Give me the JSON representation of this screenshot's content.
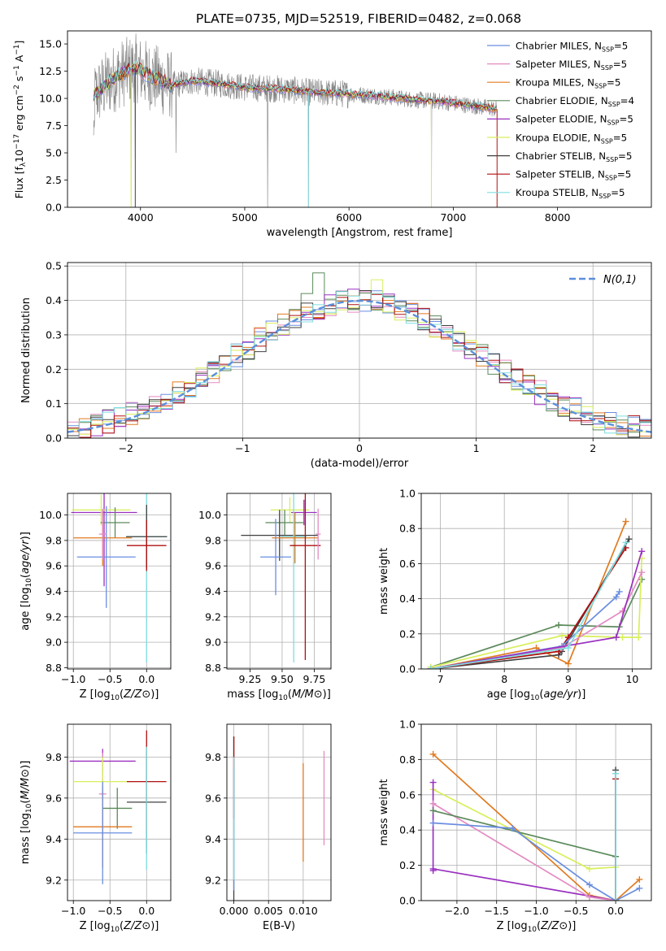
{
  "figure": {
    "title": "PLATE=0735, MJD=52519, FIBERID=0482, z=0.068"
  },
  "palette": {
    "Chabrier MILES": "#6a8ee0",
    "Salpeter MILES": "#e38bc3",
    "Kroupa MILES": "#e07a20",
    "Chabrier ELODIE": "#5b8a5b",
    "Salpeter ELODIE": "#9a30c0",
    "Kroupa ELODIE": "#d8ef5a",
    "Chabrier STELIB": "#404040",
    "Salpeter STELIB": "#b01010",
    "Kroupa STELIB": "#7fdde0",
    "data": "#808080"
  },
  "chart_data": [
    {
      "id": "spectrum",
      "type": "line",
      "xlabel": "wavelength [Angstrom, rest frame]",
      "ylabel": "Flux [f_λ 10^-17 erg cm^-2 s^-1 A^-1]",
      "xlim": [
        3300,
        8900
      ],
      "ylim": [
        0,
        16.2
      ],
      "xticks": [
        4000,
        5000,
        6000,
        7000,
        8000
      ],
      "yticks": [
        0.0,
        2.5,
        5.0,
        7.5,
        10.0,
        12.5,
        15.0
      ],
      "grid": false,
      "legend_position": "upper-right",
      "legend": [
        "Chabrier MILES, N_SSP=5",
        "Salpeter MILES, N_SSP=5",
        "Kroupa MILES, N_SSP=5",
        "Chabrier ELODIE, N_SSP=4",
        "Salpeter ELODIE, N_SSP=5",
        "Kroupa ELODIE, N_SSP=5",
        "Chabrier STELIB, N_SSP=5",
        "Salpeter STELIB, N_SSP=5",
        "Kroupa STELIB, N_SSP=5"
      ],
      "continuum": {
        "x": [
          3550,
          3700,
          3800,
          3950,
          4100,
          4300,
          4500,
          4800,
          5000,
          5300,
          5600,
          6000,
          6300,
          6600,
          6900,
          7200,
          7420
        ],
        "y": [
          10.2,
          11.5,
          12.2,
          12.8,
          12.0,
          11.2,
          11.6,
          11.3,
          11.0,
          10.9,
          10.6,
          10.4,
          10.2,
          9.9,
          9.7,
          9.3,
          9.0
        ]
      },
      "dips": [
        {
          "x": 3910,
          "y": 0.0
        },
        {
          "x": 3950,
          "y": 4.5
        },
        {
          "x": 4340,
          "y": 5.0
        },
        {
          "x": 5220,
          "y": 0.0
        },
        {
          "x": 5610,
          "y": 0.0
        },
        {
          "x": 6790,
          "y": 0.0
        }
      ]
    },
    {
      "id": "residuals",
      "type": "histogram",
      "xlabel": "(data-model)/error",
      "ylabel": "Normed distribution",
      "xlim": [
        -2.5,
        2.5
      ],
      "ylim": [
        0,
        0.51
      ],
      "xticks": [
        -2,
        -1,
        0,
        1,
        2
      ],
      "yticks": [
        0.0,
        0.1,
        0.2,
        0.3,
        0.4,
        0.5
      ],
      "grid": true,
      "legend_position": "upper-right",
      "legend": [
        "N(0,1)"
      ],
      "bin_width": 0.1,
      "peak_bins": [
        {
          "x": -0.35,
          "y": 0.48
        },
        {
          "x": 0.15,
          "y": 0.46
        },
        {
          "x": -0.45,
          "y": 0.42
        },
        {
          "x": 0.0,
          "y": 0.45
        }
      ]
    },
    {
      "id": "age-vs-Z",
      "type": "errorbar",
      "xlabel": "Z [log10(Z/Z⊙)]",
      "ylabel": "age [log10(age/yr)]",
      "xlim": [
        -1.08,
        0.33
      ],
      "ylim": [
        8.79,
        10.17
      ],
      "xticks": [
        -1.0,
        -0.5,
        0.0
      ],
      "yticks": [
        8.8,
        9.0,
        9.2,
        9.4,
        9.6,
        9.8,
        10.0
      ],
      "grid": true,
      "points": [
        {
          "s": "Salpeter ELODIE",
          "x": -0.58,
          "xerr": 0.45,
          "y": 10.02,
          "yerr": 0.58
        },
        {
          "s": "Kroupa ELODIE",
          "x": -0.62,
          "xerr": 0.4,
          "y": 10.04,
          "yerr": 0.12
        },
        {
          "s": "Chabrier ELODIE",
          "x": -0.43,
          "xerr": 0.2,
          "y": 9.94,
          "yerr": 0.12
        },
        {
          "s": "Kroupa MILES",
          "x": -0.6,
          "xerr": 0.4,
          "y": 9.82,
          "yerr": 0.22
        },
        {
          "s": "Chabrier MILES",
          "x": -0.55,
          "xerr": 0.4,
          "y": 9.67,
          "yerr": 0.4
        },
        {
          "s": "Kroupa STELIB",
          "x": 0.0,
          "xerr": 0.28,
          "y": 9.83,
          "yerr": 0.99
        },
        {
          "s": "Chabrier STELIB",
          "x": 0.0,
          "xerr": 0.28,
          "y": 9.83,
          "yerr": 0.25
        },
        {
          "s": "Salpeter STELIB",
          "x": 0.0,
          "xerr": 0.27,
          "y": 9.76,
          "yerr": 0.2
        },
        {
          "s": "Salpeter MILES",
          "x": -0.6,
          "xerr": 0.05,
          "y": 9.85,
          "yerr": 0.2
        }
      ]
    },
    {
      "id": "age-vs-mass",
      "type": "errorbar",
      "xlabel": "mass [log10(M/M⊙)]",
      "ylabel": "",
      "xlim": [
        9.07,
        9.88
      ],
      "ylim": [
        8.79,
        10.17
      ],
      "xticks": [
        9.25,
        9.5,
        9.75
      ],
      "yticks": [
        8.8,
        9.0,
        9.2,
        9.4,
        9.6,
        9.8,
        10.0
      ],
      "grid": true,
      "points": [
        {
          "s": "Kroupa ELODIE",
          "x": 9.56,
          "xerr": 0.15,
          "y": 10.04,
          "yerr": 0.1
        },
        {
          "s": "Salpeter ELODIE",
          "x": 9.67,
          "xerr": 0.1,
          "y": 10.02,
          "yerr": 0.1
        },
        {
          "s": "Chabrier ELODIE",
          "x": 9.52,
          "xerr": 0.15,
          "y": 9.94,
          "yerr": 0.1
        },
        {
          "s": "Chabrier STELIB",
          "x": 9.48,
          "xerr": 0.3,
          "y": 9.84,
          "yerr": 0.2
        },
        {
          "s": "Kroupa STELIB",
          "x": 9.59,
          "xerr": 0.1,
          "y": 9.83,
          "yerr": 0.99
        },
        {
          "s": "Kroupa MILES",
          "x": 9.6,
          "xerr": 0.18,
          "y": 9.82,
          "yerr": 0.2
        },
        {
          "s": "Salpeter STELIB",
          "x": 9.68,
          "xerr": 0.12,
          "y": 9.76,
          "yerr": 0.9
        },
        {
          "s": "Chabrier MILES",
          "x": 9.45,
          "xerr": 0.12,
          "y": 9.67,
          "yerr": 0.3
        },
        {
          "s": "Salpeter MILES",
          "x": 9.78,
          "xerr": 0.02,
          "y": 9.85,
          "yerr": 0.2
        }
      ]
    },
    {
      "id": "weight-vs-age",
      "type": "line",
      "xlabel": "age [log10(age/yr)]",
      "ylabel": "mass weight",
      "xlim": [
        6.7,
        10.3
      ],
      "ylim": [
        0,
        1.0
      ],
      "xticks": [
        7,
        8,
        9,
        10
      ],
      "yticks": [
        0.0,
        0.2,
        0.4,
        0.6,
        0.8,
        1.0
      ],
      "grid": true,
      "series": [
        {
          "s": "Chabrier ELODIE",
          "x": [
            6.85,
            8.85,
            9.8,
            10.15
          ],
          "y": [
            0.01,
            0.25,
            0.24,
            0.51
          ]
        },
        {
          "s": "Kroupa ELODIE",
          "x": [
            6.85,
            8.9,
            9.85,
            10.1,
            10.15
          ],
          "y": [
            0.01,
            0.19,
            0.18,
            0.18,
            0.63
          ]
        },
        {
          "s": "Kroupa MILES",
          "x": [
            6.85,
            8.5,
            9.0,
            9.9
          ],
          "y": [
            0.0,
            0.12,
            0.03,
            0.84
          ]
        },
        {
          "s": "Chabrier STELIB",
          "x": [
            6.85,
            8.85,
            8.9,
            9.95
          ],
          "y": [
            0.0,
            0.08,
            0.1,
            0.74
          ]
        },
        {
          "s": "Salpeter STELIB",
          "x": [
            6.85,
            8.85,
            9.0,
            9.9
          ],
          "y": [
            0.0,
            0.1,
            0.18,
            0.69
          ]
        },
        {
          "s": "Chabrier MILES",
          "x": [
            6.85,
            8.9,
            9.75,
            9.8
          ],
          "y": [
            0.0,
            0.13,
            0.41,
            0.44
          ]
        },
        {
          "s": "Salpeter MILES",
          "x": [
            6.85,
            8.9,
            9.85,
            10.15
          ],
          "y": [
            0.0,
            0.12,
            0.33,
            0.55
          ]
        },
        {
          "s": "Salpeter ELODIE",
          "x": [
            6.85,
            9.75,
            10.15
          ],
          "y": [
            0.0,
            0.18,
            0.67
          ]
        },
        {
          "s": "Kroupa STELIB",
          "x": [
            6.85,
            9.0,
            9.9
          ],
          "y": [
            0.0,
            0.12,
            0.72
          ]
        }
      ]
    },
    {
      "id": "mass-vs-Z",
      "type": "errorbar",
      "xlabel": "Z [log10(Z/Z⊙)]",
      "ylabel": "mass [log10(M/M⊙)]",
      "xlim": [
        -1.08,
        0.33
      ],
      "ylim": [
        9.1,
        9.96
      ],
      "xticks": [
        -1.0,
        -0.5,
        0.0
      ],
      "yticks": [
        9.2,
        9.4,
        9.6,
        9.8
      ],
      "grid": true,
      "points": [
        {
          "s": "Salpeter ELODIE",
          "x": -0.6,
          "xerr": 0.45,
          "y": 9.78,
          "yerr": 0.06
        },
        {
          "s": "Salpeter MILES",
          "x": -0.6,
          "xerr": 0.05,
          "y": 9.62,
          "yerr": 0.2
        },
        {
          "s": "Kroupa ELODIE",
          "x": -0.6,
          "xerr": 0.4,
          "y": 9.68,
          "yerr": 0.12
        },
        {
          "s": "Chabrier ELODIE",
          "x": -0.4,
          "xerr": 0.2,
          "y": 9.55,
          "yerr": 0.1
        },
        {
          "s": "Kroupa MILES",
          "x": -0.6,
          "xerr": 0.4,
          "y": 9.46,
          "yerr": 0.2
        },
        {
          "s": "Chabrier MILES",
          "x": -0.6,
          "xerr": 0.4,
          "y": 9.43,
          "yerr": 0.25
        },
        {
          "s": "Chabrier STELIB",
          "x": 0.0,
          "xerr": 0.27,
          "y": 9.58,
          "yerr": 0.25
        },
        {
          "s": "Salpeter STELIB",
          "x": 0.0,
          "xerr": 0.27,
          "y": 9.68,
          "yerr": 0.25
        },
        {
          "s": "Kroupa STELIB",
          "x": 0.0,
          "xerr": 0.0,
          "y": 9.55,
          "yerr": 0.3
        }
      ]
    },
    {
      "id": "mass-vs-EBV",
      "type": "errorbar",
      "xlabel": "E(B-V)",
      "ylabel": "",
      "xlim": [
        -0.001,
        0.014
      ],
      "ylim": [
        9.1,
        9.96
      ],
      "xticks": [
        0.0,
        0.005,
        0.01
      ],
      "yticks": [
        9.2,
        9.4,
        9.6,
        9.8
      ],
      "grid": true,
      "points": [
        {
          "s": "Chabrier STELIB",
          "x": 0.0,
          "xerr": 0.0,
          "y": 9.5,
          "yerr": 0.4
        },
        {
          "s": "Salpeter STELIB",
          "x": 0.0,
          "xerr": 0.0,
          "y": 9.7,
          "yerr": 0.2
        },
        {
          "s": "Chabrier MILES",
          "x": 0.0,
          "xerr": 0.0,
          "y": 9.45,
          "yerr": 0.3
        },
        {
          "s": "Kroupa STELIB",
          "x": 0.0,
          "xerr": 0.0,
          "y": 9.5,
          "yerr": 0.3
        },
        {
          "s": "Kroupa MILES",
          "x": 0.01,
          "xerr": 0.0,
          "y": 9.53,
          "yerr": 0.24
        },
        {
          "s": "Salpeter MILES",
          "x": 0.013,
          "xerr": 0.0,
          "y": 9.6,
          "yerr": 0.23
        }
      ]
    },
    {
      "id": "weight-vs-Z",
      "type": "line",
      "xlabel": "Z [log10(Z/Z⊙)]",
      "ylabel": "mass weight",
      "xlim": [
        -2.45,
        0.45
      ],
      "ylim": [
        0,
        1.0
      ],
      "xticks": [
        -2.0,
        -1.5,
        -1.0,
        -0.5,
        0.0
      ],
      "yticks": [
        0.0,
        0.2,
        0.4,
        0.6,
        0.8,
        1.0
      ],
      "grid": true,
      "series": [
        {
          "s": "Kroupa MILES",
          "x": [
            -2.3,
            -0.33,
            0.0,
            0.3
          ],
          "y": [
            0.83,
            0.03,
            0.0,
            0.12
          ]
        },
        {
          "s": "Kroupa ELODIE",
          "x": [
            -2.3,
            -0.33,
            0.0
          ],
          "y": [
            0.63,
            0.18,
            0.19
          ]
        },
        {
          "s": "Salpeter ELODIE",
          "x": [
            -2.3,
            0.0
          ],
          "y": [
            0.18,
            0.0
          ]
        },
        {
          "s": "Salpeter ELODIE",
          "x": [
            -2.3,
            -2.3
          ],
          "y": [
            0.67,
            0.17
          ]
        },
        {
          "s": "Salpeter MILES",
          "x": [
            -2.3,
            -0.33,
            0.0
          ],
          "y": [
            0.55,
            0.02,
            0.0
          ]
        },
        {
          "s": "Chabrier ELODIE",
          "x": [
            -2.3,
            0.0
          ],
          "y": [
            0.51,
            0.25
          ]
        },
        {
          "s": "Chabrier MILES",
          "x": [
            -2.3,
            -1.3,
            -0.33,
            0.0,
            0.3
          ],
          "y": [
            0.44,
            0.41,
            0.09,
            0.0,
            0.07
          ]
        },
        {
          "s": "Chabrier STELIB",
          "x": [
            0.0,
            0.0
          ],
          "y": [
            0.0,
            0.74
          ]
        },
        {
          "s": "Salpeter STELIB",
          "x": [
            0.0,
            0.0
          ],
          "y": [
            0.0,
            0.69
          ]
        },
        {
          "s": "Kroupa STELIB",
          "x": [
            0.0,
            0.0
          ],
          "y": [
            0.0,
            0.72
          ]
        }
      ]
    }
  ]
}
